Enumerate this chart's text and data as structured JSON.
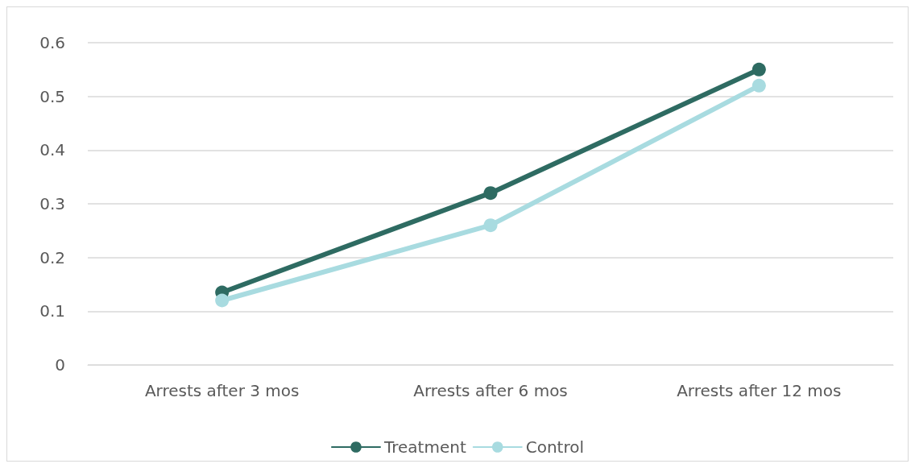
{
  "chart_data": {
    "type": "line",
    "categories": [
      "Arrests after 3 mos",
      "Arrests after 6 mos",
      "Arrests after 12 mos"
    ],
    "series": [
      {
        "name": "Treatment",
        "color": "#2e6b62",
        "values": [
          0.135,
          0.32,
          0.55
        ]
      },
      {
        "name": "Control",
        "color": "#a8dbe0",
        "values": [
          0.12,
          0.26,
          0.52
        ]
      }
    ],
    "ylim": [
      0,
      0.6
    ],
    "yticks": [
      0,
      0.1,
      0.2,
      0.3,
      0.4,
      0.5,
      0.6
    ],
    "grid": "y",
    "legend": "bottom",
    "marker": "circle",
    "line_style": "solid"
  }
}
